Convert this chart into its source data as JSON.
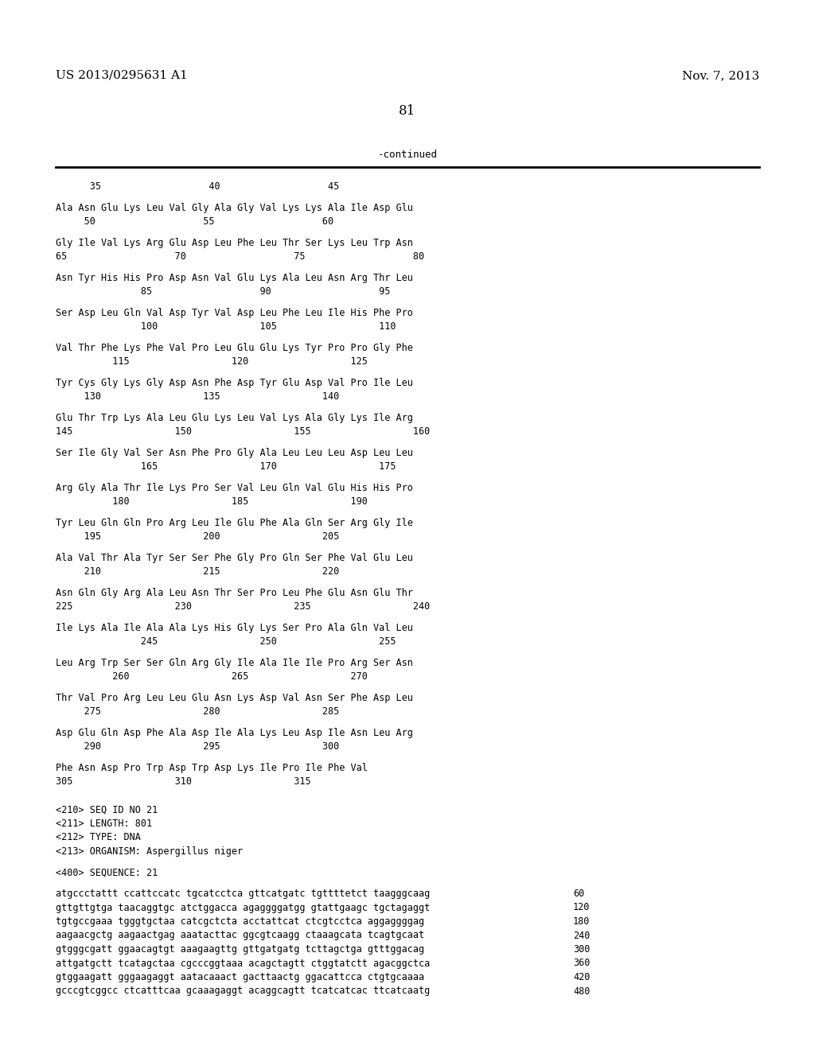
{
  "bg_color": "#ffffff",
  "header_left": "US 2013/0295631 A1",
  "header_right": "Nov. 7, 2013",
  "page_number": "81",
  "continued_label": "-continued",
  "content": [
    {
      "type": "ruler",
      "text": "      35                   40                   45"
    },
    {
      "type": "blank"
    },
    {
      "type": "seq",
      "text": "Ala Asn Glu Lys Leu Val Gly Ala Gly Val Lys Lys Ala Ile Asp Glu"
    },
    {
      "type": "num",
      "text": "     50                   55                   60"
    },
    {
      "type": "blank"
    },
    {
      "type": "seq",
      "text": "Gly Ile Val Lys Arg Glu Asp Leu Phe Leu Thr Ser Lys Leu Trp Asn"
    },
    {
      "type": "num",
      "text": "65                   70                   75                   80"
    },
    {
      "type": "blank"
    },
    {
      "type": "seq",
      "text": "Asn Tyr His His Pro Asp Asn Val Glu Lys Ala Leu Asn Arg Thr Leu"
    },
    {
      "type": "num",
      "text": "               85                   90                   95"
    },
    {
      "type": "blank"
    },
    {
      "type": "seq",
      "text": "Ser Asp Leu Gln Val Asp Tyr Val Asp Leu Phe Leu Ile His Phe Pro"
    },
    {
      "type": "num",
      "text": "               100                  105                  110"
    },
    {
      "type": "blank"
    },
    {
      "type": "seq",
      "text": "Val Thr Phe Lys Phe Val Pro Leu Glu Glu Lys Tyr Pro Pro Gly Phe"
    },
    {
      "type": "num",
      "text": "          115                  120                  125"
    },
    {
      "type": "blank"
    },
    {
      "type": "seq",
      "text": "Tyr Cys Gly Lys Gly Asp Asn Phe Asp Tyr Glu Asp Val Pro Ile Leu"
    },
    {
      "type": "num",
      "text": "     130                  135                  140"
    },
    {
      "type": "blank"
    },
    {
      "type": "seq",
      "text": "Glu Thr Trp Lys Ala Leu Glu Lys Leu Val Lys Ala Gly Lys Ile Arg"
    },
    {
      "type": "num",
      "text": "145                  150                  155                  160"
    },
    {
      "type": "blank"
    },
    {
      "type": "seq",
      "text": "Ser Ile Gly Val Ser Asn Phe Pro Gly Ala Leu Leu Leu Asp Leu Leu"
    },
    {
      "type": "num",
      "text": "               165                  170                  175"
    },
    {
      "type": "blank"
    },
    {
      "type": "seq",
      "text": "Arg Gly Ala Thr Ile Lys Pro Ser Val Leu Gln Val Glu His His Pro"
    },
    {
      "type": "num",
      "text": "          180                  185                  190"
    },
    {
      "type": "blank"
    },
    {
      "type": "seq",
      "text": "Tyr Leu Gln Gln Pro Arg Leu Ile Glu Phe Ala Gln Ser Arg Gly Ile"
    },
    {
      "type": "num",
      "text": "     195                  200                  205"
    },
    {
      "type": "blank"
    },
    {
      "type": "seq",
      "text": "Ala Val Thr Ala Tyr Ser Ser Phe Gly Pro Gln Ser Phe Val Glu Leu"
    },
    {
      "type": "num",
      "text": "     210                  215                  220"
    },
    {
      "type": "blank"
    },
    {
      "type": "seq",
      "text": "Asn Gln Gly Arg Ala Leu Asn Thr Ser Pro Leu Phe Glu Asn Glu Thr"
    },
    {
      "type": "num",
      "text": "225                  230                  235                  240"
    },
    {
      "type": "blank"
    },
    {
      "type": "seq",
      "text": "Ile Lys Ala Ile Ala Ala Lys His Gly Lys Ser Pro Ala Gln Val Leu"
    },
    {
      "type": "num",
      "text": "               245                  250                  255"
    },
    {
      "type": "blank"
    },
    {
      "type": "seq",
      "text": "Leu Arg Trp Ser Ser Gln Arg Gly Ile Ala Ile Ile Pro Arg Ser Asn"
    },
    {
      "type": "num",
      "text": "          260                  265                  270"
    },
    {
      "type": "blank"
    },
    {
      "type": "seq",
      "text": "Thr Val Pro Arg Leu Leu Glu Asn Lys Asp Val Asn Ser Phe Asp Leu"
    },
    {
      "type": "num",
      "text": "     275                  280                  285"
    },
    {
      "type": "blank"
    },
    {
      "type": "seq",
      "text": "Asp Glu Gln Asp Phe Ala Asp Ile Ala Lys Leu Asp Ile Asn Leu Arg"
    },
    {
      "type": "num",
      "text": "     290                  295                  300"
    },
    {
      "type": "blank"
    },
    {
      "type": "seq",
      "text": "Phe Asn Asp Pro Trp Asp Trp Asp Lys Ile Pro Ile Phe Val"
    },
    {
      "type": "num",
      "text": "305                  310                  315"
    },
    {
      "type": "blank"
    },
    {
      "type": "blank"
    },
    {
      "type": "meta",
      "text": "<210> SEQ ID NO 21"
    },
    {
      "type": "meta",
      "text": "<211> LENGTH: 801"
    },
    {
      "type": "meta",
      "text": "<212> TYPE: DNA"
    },
    {
      "type": "meta",
      "text": "<213> ORGANISM: Aspergillus niger"
    },
    {
      "type": "blank"
    },
    {
      "type": "meta",
      "text": "<400> SEQUENCE: 21"
    },
    {
      "type": "blank"
    },
    {
      "type": "dna",
      "seq": "atgccctattt ccattccatc tgcatcctca gttcatgatc tgttttetct taagggcaag",
      "num": "60"
    },
    {
      "type": "dna",
      "seq": "gttgttgtga taacaggtgc atctggacca agaggggatgg gtattgaagc tgctagaggt",
      "num": "120"
    },
    {
      "type": "dna",
      "seq": "tgtgccgaaa tgggtgctaa catcgctcta acctattcat ctcgtcctca aggaggggag",
      "num": "180"
    },
    {
      "type": "dna",
      "seq": "aagaacgctg aagaactgag aaatacttac ggcgtcaagg ctaaagcata tcagtgcaat",
      "num": "240"
    },
    {
      "type": "dna",
      "seq": "gtgggcgatt ggaacagtgt aaagaagttg gttgatgatg tcttagctga gtttggacag",
      "num": "300"
    },
    {
      "type": "dna",
      "seq": "attgatgctt tcatagctaa cgcccggtaaa acagctagtt ctggtatctt agacggctca",
      "num": "360"
    },
    {
      "type": "dna",
      "seq": "gtggaagatt gggaagaggt aatacaaact gacttaactg ggacattcca ctgtgcaaaa",
      "num": "420"
    },
    {
      "type": "dna",
      "seq": "gcccgtcggcc ctcatttcaa gcaaagaggt acaggcagtt tcatcatcac ttcatcaatg",
      "num": "480"
    }
  ]
}
